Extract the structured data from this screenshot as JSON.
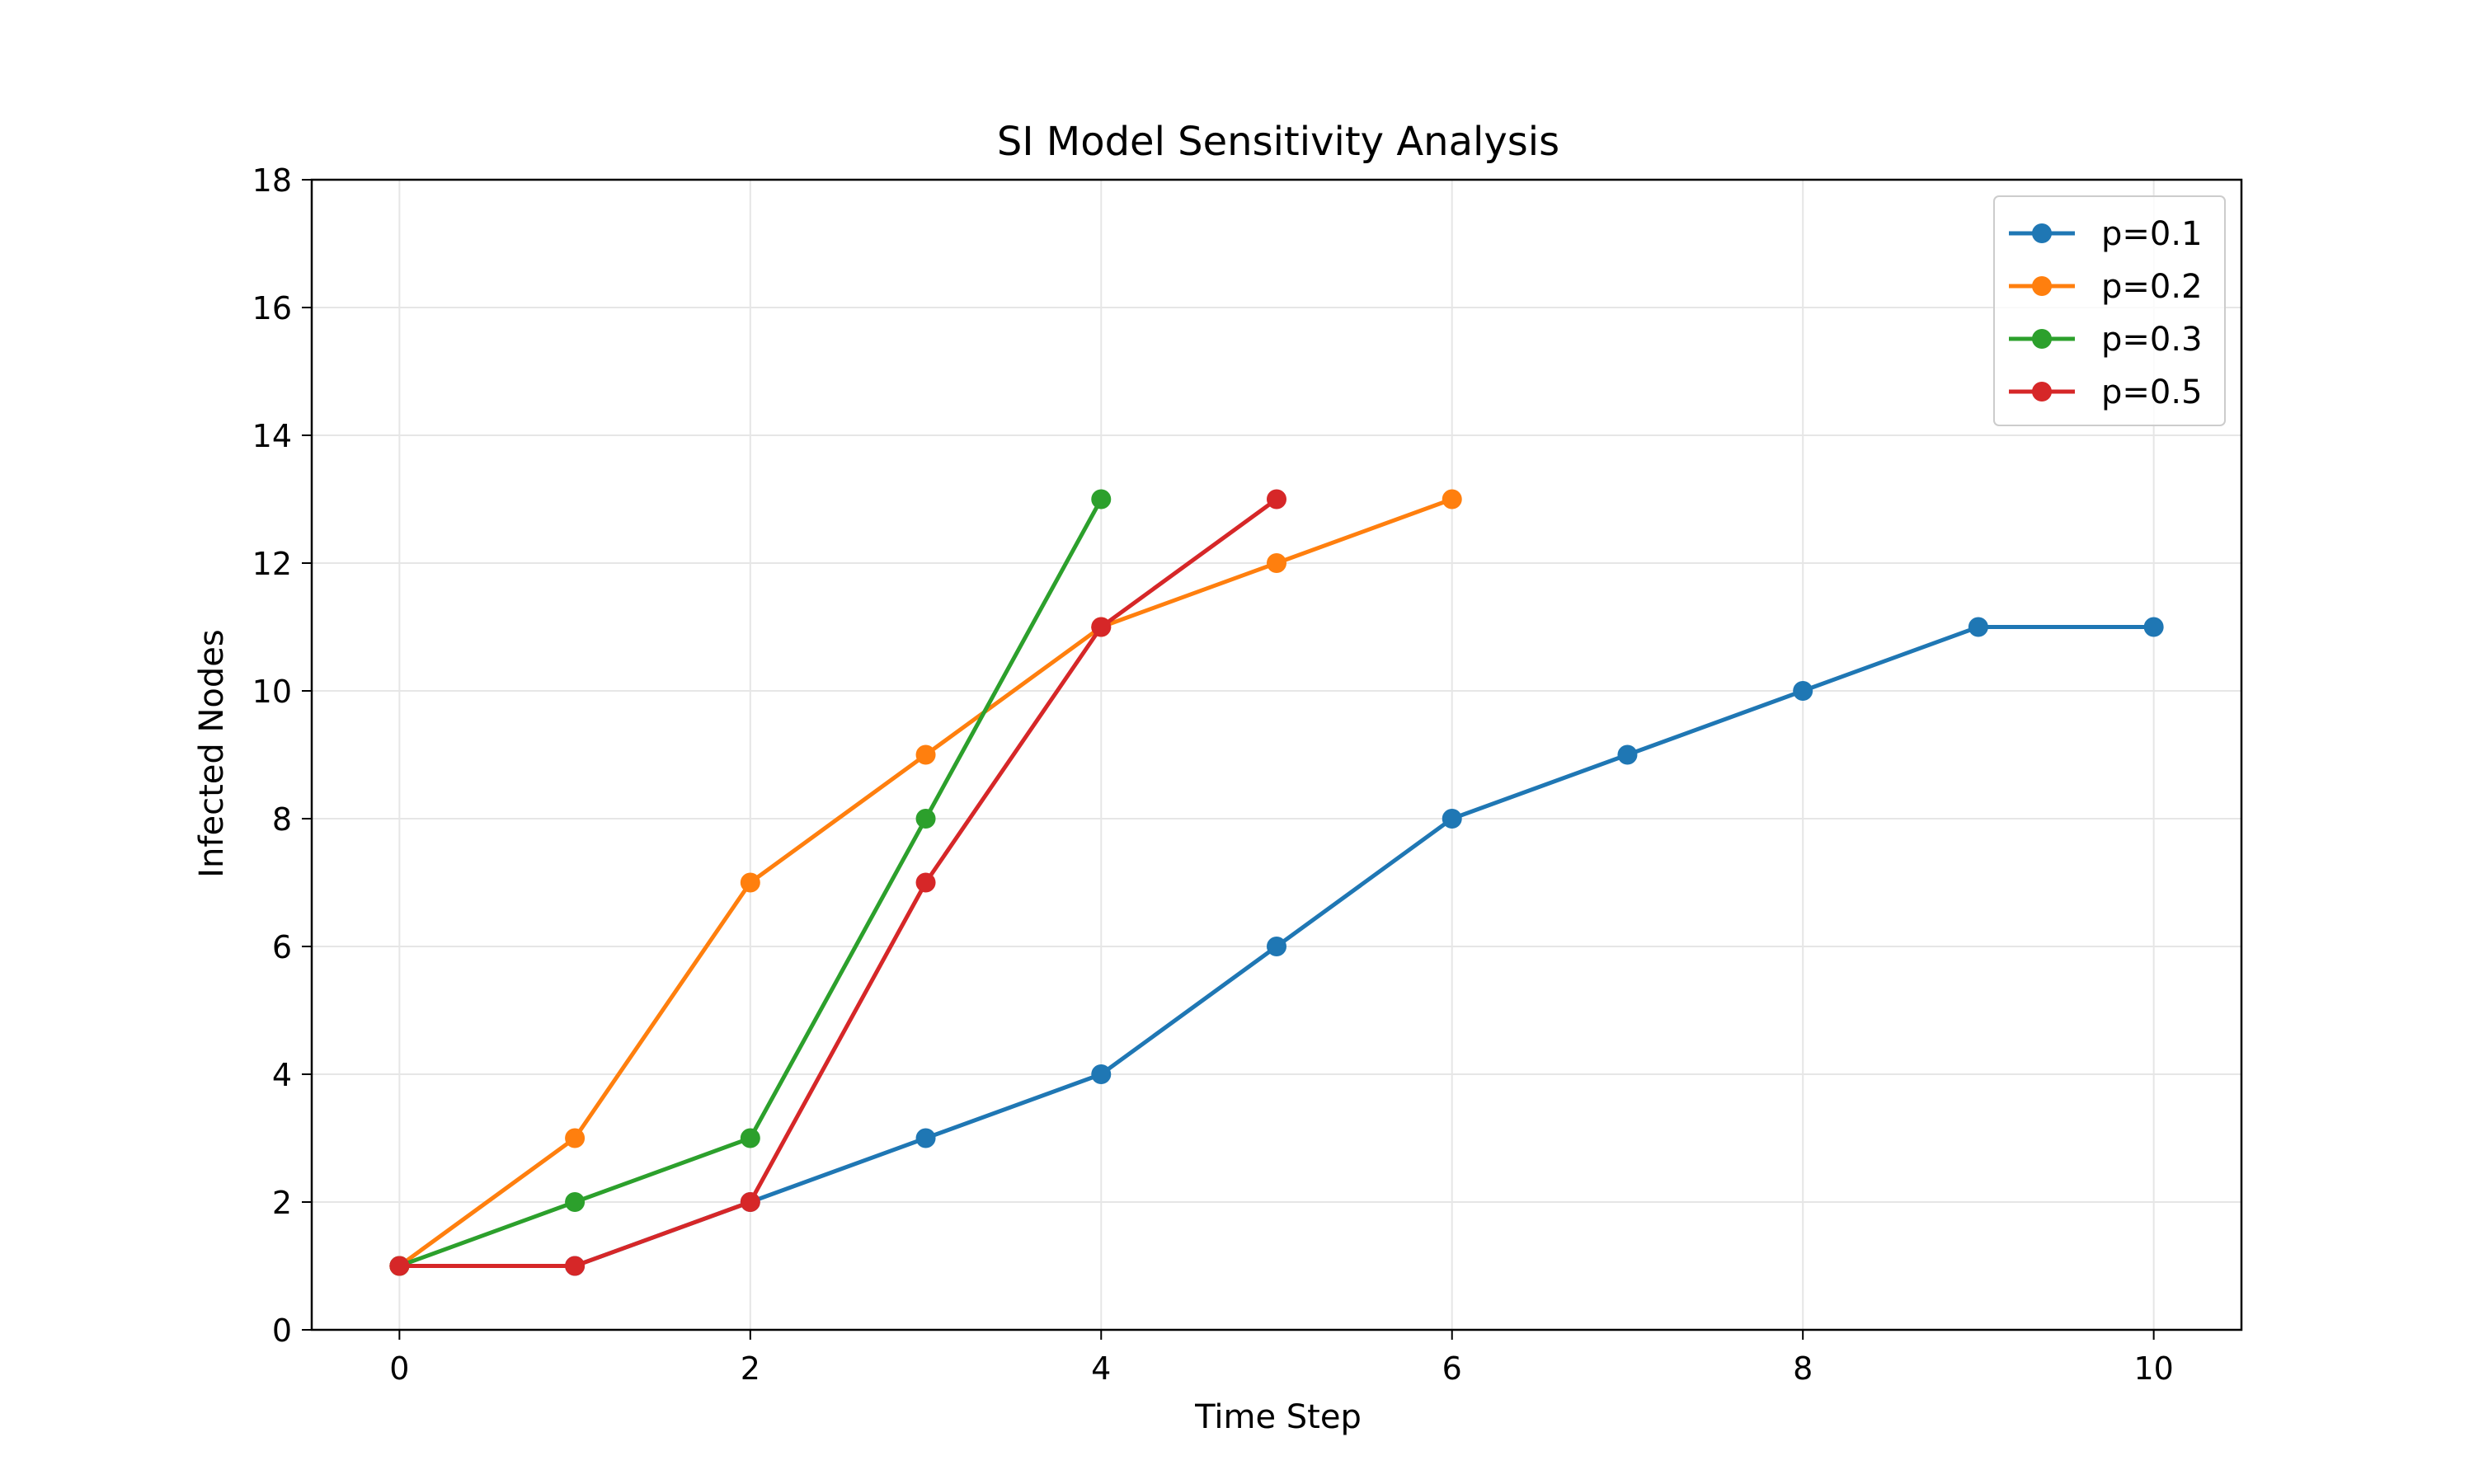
{
  "chart_data": {
    "type": "line",
    "title": "SI Model Sensitivity Analysis",
    "xlabel": "Time Step",
    "ylabel": "Infected Nodes",
    "xlim": [
      -0.5,
      10.5
    ],
    "ylim": [
      0,
      18
    ],
    "xticks": [
      0,
      2,
      4,
      6,
      8,
      10
    ],
    "yticks": [
      0,
      2,
      4,
      6,
      8,
      10,
      12,
      14,
      16,
      18
    ],
    "grid": true,
    "legend_position": "top-right",
    "series": [
      {
        "name": "p=0.1",
        "color": "#1f77b4",
        "x": [
          0,
          1,
          2,
          3,
          4,
          5,
          6,
          7,
          8,
          9,
          10
        ],
        "values": [
          1,
          1,
          2,
          3,
          4,
          6,
          8,
          9,
          10,
          11,
          11
        ]
      },
      {
        "name": "p=0.2",
        "color": "#ff7f0e",
        "x": [
          0,
          1,
          2,
          3,
          4,
          5,
          6
        ],
        "values": [
          1,
          3,
          7,
          9,
          11,
          12,
          13
        ]
      },
      {
        "name": "p=0.3",
        "color": "#2ca02c",
        "x": [
          0,
          1,
          2,
          3,
          4
        ],
        "values": [
          1,
          2,
          3,
          8,
          13
        ]
      },
      {
        "name": "p=0.5",
        "color": "#d62728",
        "x": [
          0,
          1,
          2,
          3,
          4,
          5
        ],
        "values": [
          1,
          1,
          2,
          7,
          11,
          13
        ]
      }
    ]
  }
}
